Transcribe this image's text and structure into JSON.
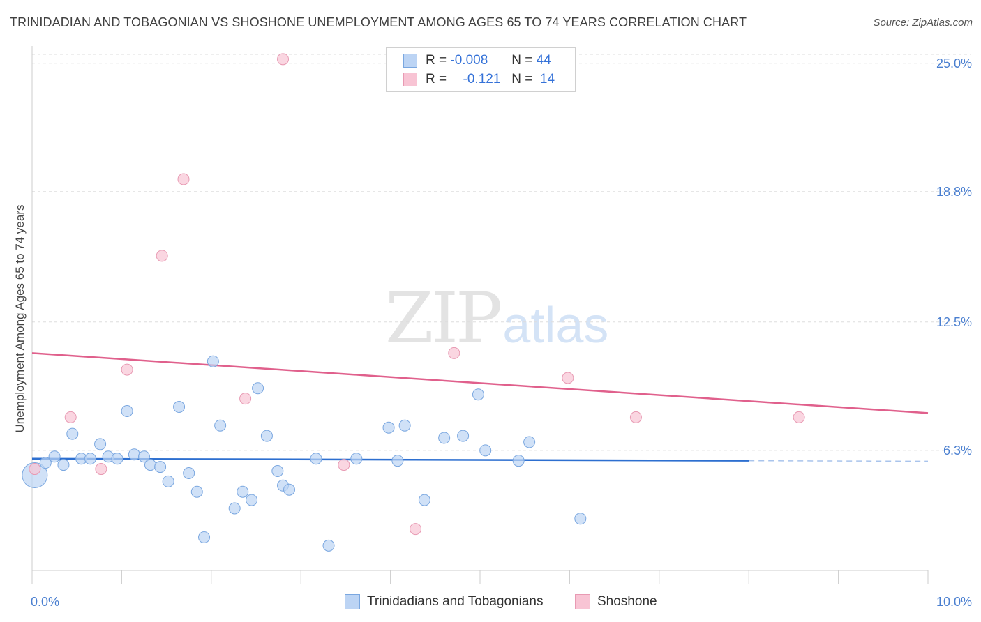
{
  "header": {
    "title": "TRINIDADIAN AND TOBAGONIAN VS SHOSHONE UNEMPLOYMENT AMONG AGES 65 TO 74 YEARS CORRELATION CHART",
    "source": "Source: ZipAtlas.com"
  },
  "watermark": {
    "zip": "ZIP",
    "atlas": "atlas"
  },
  "legend_top": [
    {
      "r_label": "R = ",
      "r_value": "-0.008",
      "n_label": "N = ",
      "n_value": "44"
    },
    {
      "r_label": "R = ",
      "r_value": "-0.121",
      "n_label": "N = ",
      "n_value": "14"
    }
  ],
  "legend_bottom": [
    {
      "label": "Trinidadians and Tobagonians"
    },
    {
      "label": "Shoshone"
    }
  ],
  "colors": {
    "blue_fill": "#bcd4f4",
    "blue_stroke": "#7aa7e0",
    "blue_line": "#2d6fd0",
    "pink_fill": "#f8c4d4",
    "pink_stroke": "#e89ab3",
    "pink_line": "#e0608c",
    "grid": "#dddddd",
    "axis_text": "#4a7fd0"
  },
  "chart_data": {
    "type": "scatter",
    "title": "TRINIDADIAN AND TOBAGONIAN VS SHOSHONE UNEMPLOYMENT AMONG AGES 65 TO 74 YEARS CORRELATION CHART",
    "xlabel": "",
    "ylabel": "Unemployment Among Ages 65 to 74 years",
    "xlim": [
      0,
      10
    ],
    "ylim": [
      0.5,
      25.7
    ],
    "x_tick_labels": [
      "0.0%",
      "10.0%"
    ],
    "y_ticks": [
      6.3,
      12.5,
      18.8,
      25.0
    ],
    "y_tick_labels": [
      "6.3%",
      "12.5%",
      "18.8%",
      "25.0%"
    ],
    "grid": true,
    "series": [
      {
        "name": "Trinidadians and Tobagonians",
        "r": -0.008,
        "n": 44,
        "trend": {
          "x0": 0.0,
          "y0": 5.9,
          "x1": 8.0,
          "y1": 5.8,
          "dashed_to_x": 10.0
        },
        "points": [
          {
            "x": 0.03,
            "y": 5.1,
            "big": true
          },
          {
            "x": 0.15,
            "y": 5.7
          },
          {
            "x": 0.25,
            "y": 6.0
          },
          {
            "x": 0.35,
            "y": 5.6
          },
          {
            "x": 0.45,
            "y": 7.1
          },
          {
            "x": 0.55,
            "y": 5.9
          },
          {
            "x": 0.65,
            "y": 5.9
          },
          {
            "x": 0.76,
            "y": 6.6
          },
          {
            "x": 0.85,
            "y": 6.0
          },
          {
            "x": 0.95,
            "y": 5.9
          },
          {
            "x": 1.06,
            "y": 8.2
          },
          {
            "x": 1.14,
            "y": 6.1
          },
          {
            "x": 1.25,
            "y": 6.0
          },
          {
            "x": 1.32,
            "y": 5.6
          },
          {
            "x": 1.43,
            "y": 5.5
          },
          {
            "x": 1.52,
            "y": 4.8
          },
          {
            "x": 1.64,
            "y": 8.4
          },
          {
            "x": 1.75,
            "y": 5.2
          },
          {
            "x": 1.84,
            "y": 4.3
          },
          {
            "x": 1.92,
            "y": 2.1
          },
          {
            "x": 2.02,
            "y": 10.6
          },
          {
            "x": 2.1,
            "y": 7.5
          },
          {
            "x": 2.26,
            "y": 3.5
          },
          {
            "x": 2.35,
            "y": 4.3
          },
          {
            "x": 2.45,
            "y": 3.9
          },
          {
            "x": 2.52,
            "y": 9.3
          },
          {
            "x": 2.62,
            "y": 7.0
          },
          {
            "x": 2.74,
            "y": 5.3
          },
          {
            "x": 2.8,
            "y": 4.6
          },
          {
            "x": 2.87,
            "y": 4.4
          },
          {
            "x": 3.17,
            "y": 5.9
          },
          {
            "x": 3.31,
            "y": 1.7
          },
          {
            "x": 3.62,
            "y": 5.9
          },
          {
            "x": 3.98,
            "y": 7.4
          },
          {
            "x": 4.08,
            "y": 5.8
          },
          {
            "x": 4.16,
            "y": 7.5
          },
          {
            "x": 4.38,
            "y": 3.9
          },
          {
            "x": 4.6,
            "y": 6.9
          },
          {
            "x": 4.81,
            "y": 7.0
          },
          {
            "x": 4.98,
            "y": 9.0
          },
          {
            "x": 5.06,
            "y": 6.3
          },
          {
            "x": 5.43,
            "y": 5.8
          },
          {
            "x": 5.55,
            "y": 6.7
          },
          {
            "x": 6.12,
            "y": 3.0
          }
        ]
      },
      {
        "name": "Shoshone",
        "r": -0.121,
        "n": 14,
        "trend": {
          "x0": 0.0,
          "y0": 11.0,
          "x1": 10.0,
          "y1": 8.1
        },
        "points": [
          {
            "x": 0.03,
            "y": 5.4
          },
          {
            "x": 0.43,
            "y": 7.9
          },
          {
            "x": 0.77,
            "y": 5.4
          },
          {
            "x": 1.06,
            "y": 10.2
          },
          {
            "x": 1.45,
            "y": 15.7
          },
          {
            "x": 1.69,
            "y": 19.4
          },
          {
            "x": 2.38,
            "y": 8.8
          },
          {
            "x": 2.8,
            "y": 25.2
          },
          {
            "x": 3.48,
            "y": 5.6
          },
          {
            "x": 4.28,
            "y": 2.5
          },
          {
            "x": 4.71,
            "y": 11.0
          },
          {
            "x": 5.98,
            "y": 9.8
          },
          {
            "x": 6.74,
            "y": 7.9
          },
          {
            "x": 8.56,
            "y": 7.9
          }
        ]
      }
    ]
  }
}
